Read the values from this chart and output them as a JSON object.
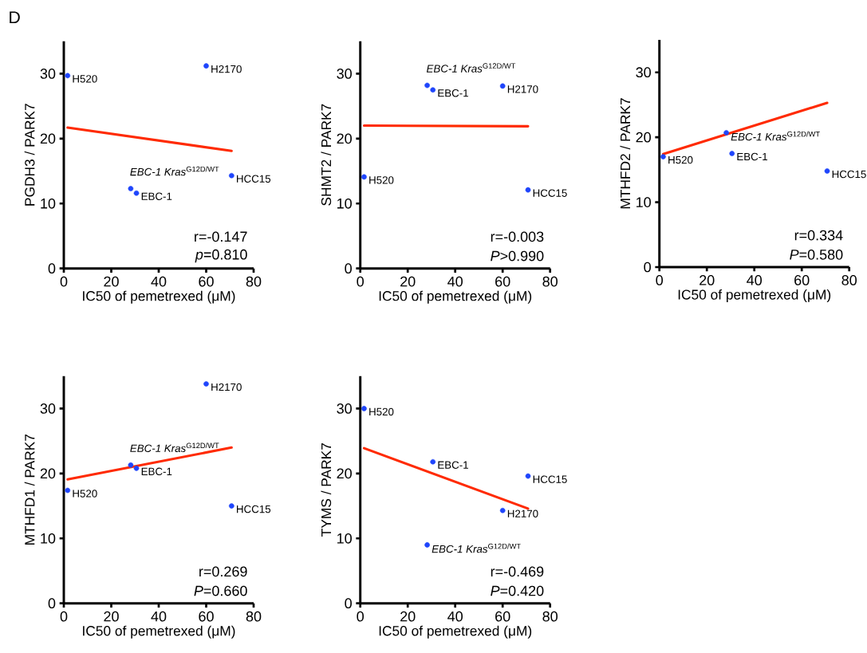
{
  "chart_data": [
    {
      "type": "scatter",
      "title": "D",
      "xlabel": "IC50 of pemetrexed (μM)",
      "ylabel": "PGDH3 / PARK7",
      "xlim": [
        0,
        80
      ],
      "ylim": [
        0,
        35
      ],
      "xticks": [
        0,
        20,
        40,
        60,
        80
      ],
      "yticks": [
        0,
        10,
        20,
        30
      ],
      "series": [
        {
          "marker": "circle",
          "color": "#1f45fc",
          "x": [
            1.6,
            28.2,
            30.6,
            60,
            70.7
          ],
          "values": [
            29.7,
            12.3,
            11.6,
            31.2,
            14.3
          ]
        },
        {
          "type": "line",
          "color": "#ff2a00",
          "x": [
            1.6,
            70.7
          ],
          "values": [
            21.7,
            18.1
          ]
        }
      ],
      "annotations": [
        {
          "text": "H520",
          "x": 1.6,
          "y": 29.7
        },
        {
          "text": "*EBC-1 Kras*$^{G12D/WT}$",
          "x": 28.2,
          "y": 12.3
        },
        {
          "text": "EBC-1",
          "x": 30.6,
          "y": 11.6
        },
        {
          "text": "H2170",
          "x": 60,
          "y": 31.2
        },
        {
          "text": "HCC15",
          "x": 70.7,
          "y": 14.3
        },
        "r=-0.147",
        "*p*=0.810"
      ]
    },
    {
      "type": "scatter",
      "xlabel": "IC50 of pemetrexed (μM)",
      "ylabel": "SHMT2 / PARK7",
      "xlim": [
        0,
        80
      ],
      "ylim": [
        0,
        35
      ],
      "xticks": [
        0,
        20,
        40,
        60,
        80
      ],
      "yticks": [
        0,
        10,
        20,
        30
      ],
      "series": [
        {
          "marker": "circle",
          "color": "#1f45fc",
          "x": [
            1.6,
            28.2,
            30.6,
            60,
            70.7
          ],
          "values": [
            14.1,
            28.2,
            27.5,
            28.1,
            12.1
          ]
        },
        {
          "type": "line",
          "color": "#ff2a00",
          "x": [
            1.6,
            70.7
          ],
          "values": [
            22.0,
            21.9
          ]
        }
      ],
      "annotations": [
        {
          "text": "H520",
          "x": 1.6,
          "y": 14.1
        },
        {
          "text": "*EBC-1 Kras*$^{G12D/WT}$",
          "x": 28.2,
          "y": 28.2
        },
        {
          "text": "EBC-1",
          "x": 30.6,
          "y": 27.5
        },
        {
          "text": "H2170",
          "x": 60,
          "y": 28.1
        },
        {
          "text": "HCC15",
          "x": 70.7,
          "y": 12.1
        },
        "r=-0.003",
        "*P*>0.990"
      ]
    },
    {
      "type": "scatter",
      "xlabel": "IC50 of pemetrexed (μM)",
      "ylabel": "MTHFD2 / PARK7",
      "xlim": [
        0,
        80
      ],
      "ylim": [
        0,
        35
      ],
      "xticks": [
        0,
        20,
        40,
        60,
        80
      ],
      "yticks": [
        0,
        10,
        20,
        30
      ],
      "series": [
        {
          "marker": "circle",
          "color": "#1f45fc",
          "x": [
            1.6,
            28.2,
            30.6,
            70.7
          ],
          "values": [
            17.0,
            20.7,
            17.5,
            14.8
          ]
        },
        {
          "type": "line",
          "color": "#ff2a00",
          "x": [
            1.6,
            70.7
          ],
          "values": [
            17.4,
            25.3
          ]
        }
      ],
      "annotations": [
        {
          "text": "H520",
          "x": 1.6,
          "y": 17.0
        },
        {
          "text": "*EBC-1 Kras*$^{G12D/WT}$",
          "x": 28.2,
          "y": 20.7
        },
        {
          "text": "EBC-1",
          "x": 30.6,
          "y": 17.5
        },
        {
          "text": "HCC15",
          "x": 70.7,
          "y": 14.8
        },
        "r=0.334",
        "*P*=0.580"
      ]
    },
    {
      "type": "scatter",
      "xlabel": "IC50 of pemetrexed (μM)",
      "ylabel": "MTHFD1 / PARK7",
      "xlim": [
        0,
        80
      ],
      "ylim": [
        0,
        35
      ],
      "xticks": [
        0,
        20,
        40,
        60,
        80
      ],
      "yticks": [
        0,
        10,
        20,
        30
      ],
      "series": [
        {
          "marker": "circle",
          "color": "#1f45fc",
          "x": [
            1.6,
            28.2,
            30.6,
            60,
            70.7
          ],
          "values": [
            17.4,
            21.3,
            20.8,
            33.8,
            15.0
          ]
        },
        {
          "type": "line",
          "color": "#ff2a00",
          "x": [
            1.6,
            70.7
          ],
          "values": [
            19.1,
            24.0
          ]
        }
      ],
      "annotations": [
        {
          "text": "H520",
          "x": 1.6,
          "y": 17.4
        },
        {
          "text": "*EBC-1 Kras*$^{G12D/WT}$",
          "x": 28.2,
          "y": 21.3
        },
        {
          "text": "EBC-1",
          "x": 30.6,
          "y": 20.8
        },
        {
          "text": "H2170",
          "x": 60,
          "y": 33.8
        },
        {
          "text": "HCC15",
          "x": 70.7,
          "y": 15.0
        },
        "r=0.269",
        "*P*=0.660"
      ]
    },
    {
      "type": "scatter",
      "xlabel": "IC50 of pemetrexed (μM)",
      "ylabel": "TYMS / PARK7",
      "xlim": [
        0,
        80
      ],
      "ylim": [
        0,
        35
      ],
      "xticks": [
        0,
        20,
        40,
        60,
        80
      ],
      "yticks": [
        0,
        10,
        20,
        30
      ],
      "series": [
        {
          "marker": "circle",
          "color": "#1f45fc",
          "x": [
            1.6,
            28.2,
            30.6,
            60,
            70.7
          ],
          "values": [
            30.0,
            9.0,
            21.8,
            14.3,
            19.6
          ]
        },
        {
          "type": "line",
          "color": "#ff2a00",
          "x": [
            1.6,
            70.7
          ],
          "values": [
            23.9,
            14.6
          ]
        }
      ],
      "annotations": [
        {
          "text": "H520",
          "x": 1.6,
          "y": 30.0
        },
        {
          "text": "*EBC-1 Kras*$^{G12D/WT}$",
          "x": 28.2,
          "y": 9.0
        },
        {
          "text": "EBC-1",
          "x": 30.6,
          "y": 21.8
        },
        {
          "text": "H2170",
          "x": 60,
          "y": 14.3
        },
        {
          "text": "HCC15",
          "x": 70.7,
          "y": 19.6
        },
        "r=-0.469",
        "*P*=0.420"
      ]
    }
  ]
}
